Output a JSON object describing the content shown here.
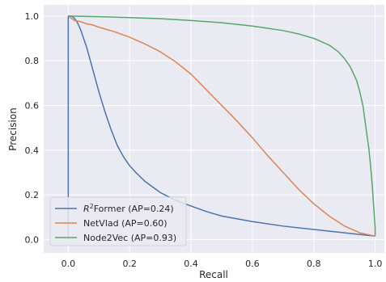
{
  "chart_data": {
    "type": "line",
    "xlabel": "Recall",
    "ylabel": "Precision",
    "xlim": [
      -0.08,
      1.03
    ],
    "ylim": [
      -0.06,
      1.05
    ],
    "xticks": [
      0.0,
      0.2,
      0.4,
      0.6,
      0.8,
      1.0
    ],
    "yticks": [
      0.0,
      0.2,
      0.4,
      0.6,
      0.8,
      1.0
    ],
    "xtick_labels": [
      "0.0",
      "0.2",
      "0.4",
      "0.6",
      "0.8",
      "1.0"
    ],
    "ytick_labels": [
      "0.0",
      "0.2",
      "0.4",
      "0.6",
      "0.8",
      "1.0"
    ],
    "grid": true,
    "legend_position": "bottom-left",
    "series": [
      {
        "name": "R²Former (AP=0.24)",
        "legend_base": "R",
        "legend_sup": "2",
        "legend_rest": "Former (AP=0.24)",
        "color": "#4c72b0",
        "x": [
          0.0,
          0.0,
          0.0,
          0.0,
          0.0,
          0.005,
          0.01,
          0.02,
          0.03,
          0.04,
          0.05,
          0.06,
          0.07,
          0.08,
          0.09,
          0.1,
          0.12,
          0.14,
          0.16,
          0.18,
          0.2,
          0.22,
          0.25,
          0.28,
          0.3,
          0.35,
          0.4,
          0.45,
          0.5,
          0.6,
          0.7,
          0.8,
          0.9,
          1.0
        ],
        "y": [
          0.0,
          0.3,
          0.7,
          0.9,
          1.0,
          1.0,
          1.0,
          0.99,
          0.97,
          0.94,
          0.9,
          0.86,
          0.81,
          0.76,
          0.71,
          0.66,
          0.57,
          0.49,
          0.42,
          0.37,
          0.33,
          0.3,
          0.26,
          0.23,
          0.21,
          0.175,
          0.15,
          0.125,
          0.105,
          0.08,
          0.06,
          0.045,
          0.03,
          0.015
        ]
      },
      {
        "name": "NetVlad (AP=0.60)",
        "color": "#dd8452",
        "x": [
          0.0,
          0.005,
          0.01,
          0.02,
          0.04,
          0.06,
          0.08,
          0.1,
          0.15,
          0.2,
          0.25,
          0.3,
          0.35,
          0.4,
          0.45,
          0.5,
          0.55,
          0.6,
          0.65,
          0.7,
          0.75,
          0.8,
          0.85,
          0.9,
          0.95,
          1.0
        ],
        "y": [
          1.0,
          0.995,
          0.99,
          0.98,
          0.975,
          0.965,
          0.96,
          0.95,
          0.93,
          0.905,
          0.875,
          0.84,
          0.795,
          0.74,
          0.67,
          0.6,
          0.53,
          0.455,
          0.375,
          0.3,
          0.225,
          0.16,
          0.105,
          0.06,
          0.03,
          0.015
        ]
      },
      {
        "name": "Node2Vec (AP=0.93)",
        "color": "#55a868",
        "x": [
          0.0,
          0.1,
          0.2,
          0.3,
          0.4,
          0.5,
          0.6,
          0.7,
          0.75,
          0.8,
          0.85,
          0.88,
          0.9,
          0.92,
          0.94,
          0.95,
          0.96,
          0.97,
          0.98,
          0.985,
          0.99,
          0.995,
          1.0,
          1.0
        ],
        "y": [
          1.0,
          0.997,
          0.993,
          0.988,
          0.98,
          0.97,
          0.955,
          0.935,
          0.92,
          0.9,
          0.87,
          0.84,
          0.81,
          0.77,
          0.71,
          0.66,
          0.6,
          0.5,
          0.4,
          0.33,
          0.25,
          0.15,
          0.05,
          0.015
        ]
      }
    ]
  }
}
